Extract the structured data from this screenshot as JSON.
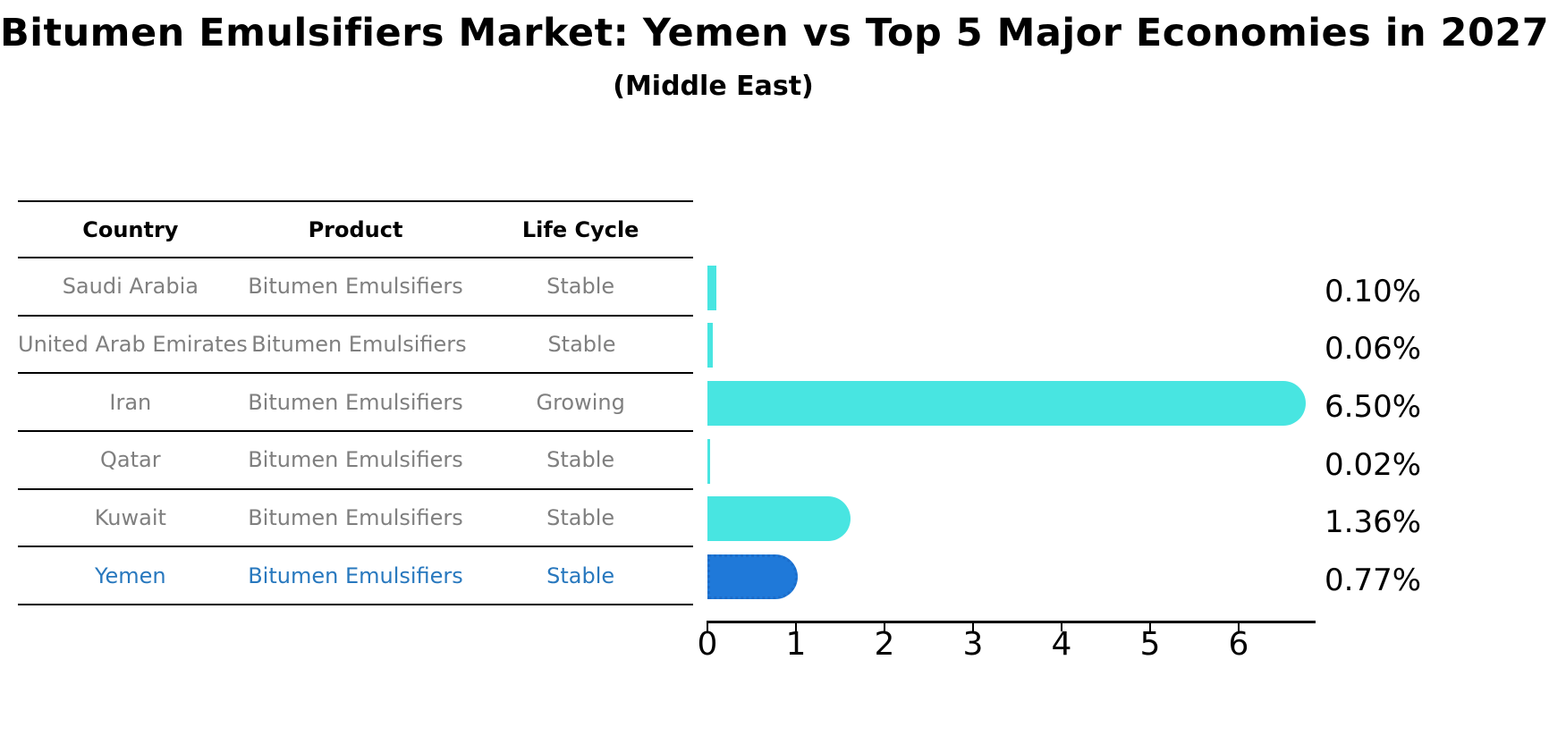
{
  "title": "Bitumen Emulsifiers Market: Yemen vs Top 5 Major Economies in 2027",
  "subtitle": "(Middle East)",
  "table": {
    "columns": [
      "Country",
      "Product",
      "Life Cycle"
    ],
    "rows": [
      {
        "country": "Saudi Arabia",
        "product": "Bitumen Emulsifiers",
        "life_cycle": "Stable"
      },
      {
        "country": "United Arab Emirates",
        "product": "Bitumen Emulsifiers",
        "life_cycle": "Stable"
      },
      {
        "country": "Iran",
        "product": "Bitumen Emulsifiers",
        "life_cycle": "Growing"
      },
      {
        "country": "Qatar",
        "product": "Bitumen Emulsifiers",
        "life_cycle": "Stable"
      },
      {
        "country": "Kuwait",
        "product": "Bitumen Emulsifiers",
        "life_cycle": "Stable"
      },
      {
        "country": "Yemen",
        "product": "Bitumen Emulsifiers",
        "life_cycle": "Stable"
      }
    ],
    "highlight_row_index": 5
  },
  "chart_data": {
    "type": "bar",
    "orientation": "horizontal",
    "categories": [
      "Saudi Arabia",
      "United Arab Emirates",
      "Iran",
      "Qatar",
      "Kuwait",
      "Yemen"
    ],
    "values": [
      0.1,
      0.06,
      6.5,
      0.02,
      1.36,
      0.77
    ],
    "value_labels": [
      "0.10%",
      "0.06%",
      "6.50%",
      "0.02%",
      "1.36%",
      "0.77%"
    ],
    "x_ticks": [
      0,
      1,
      2,
      3,
      4,
      5,
      6
    ],
    "xlim": [
      0,
      6.87
    ],
    "grid": false,
    "legend": false,
    "title": "Bitumen Emulsifiers Market: Yemen vs Top 5 Major Economies in 2027",
    "subtitle": "(Middle East)",
    "bar_color": "#48E5E1",
    "highlight_bar_color": "#1F79D9",
    "highlight_index": 5,
    "highlight_text_color": "#2878BE"
  },
  "colors": {
    "background": "#FFFFFF",
    "table_line": "#000000",
    "row_text": "#7F7F7F",
    "header_text": "#000000",
    "value_label_text": "#000000",
    "axis": "#000000"
  }
}
